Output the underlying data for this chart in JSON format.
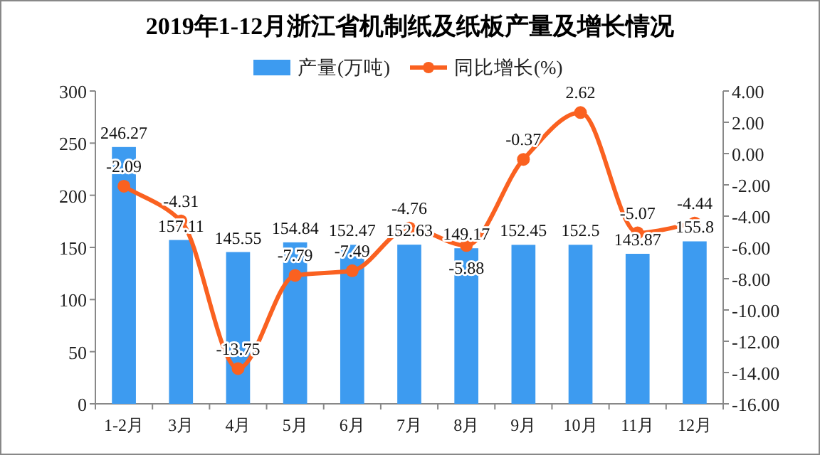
{
  "chart_data": {
    "type": "bar",
    "title": "2019年1-12月浙江省机制纸及纸板产量及增长情况",
    "categories": [
      "1-2月",
      "3月",
      "4月",
      "5月",
      "6月",
      "7月",
      "8月",
      "9月",
      "10月",
      "11月",
      "12月"
    ],
    "series": [
      {
        "name": "产量(万吨)",
        "color": "#3d9bf0",
        "values": [
          246.27,
          157.11,
          145.55,
          154.84,
          152.47,
          152.63,
          149.17,
          152.45,
          152.5,
          143.87,
          155.8
        ]
      },
      {
        "name": "同比增长(%)",
        "type": "line",
        "axis": "y2",
        "color": "#fa6120",
        "marker": "circle",
        "values": [
          -2.09,
          -4.31,
          -13.75,
          -7.79,
          -7.49,
          -4.76,
          -5.88,
          -0.37,
          2.62,
          -5.07,
          -4.44
        ]
      }
    ],
    "ylim": [
      0,
      300
    ],
    "yticks": [
      0,
      50,
      100,
      150,
      200,
      250,
      300
    ],
    "y2lim": [
      -16,
      4
    ],
    "y2ticks": [
      {
        "value": 4,
        "label": "4.00"
      },
      {
        "value": 2,
        "label": "2.00"
      },
      {
        "value": 0,
        "label": "0.00"
      },
      {
        "value": -2,
        "label": "-2.00"
      },
      {
        "value": -4,
        "label": "-4.00"
      },
      {
        "value": -6,
        "label": "-6.00"
      },
      {
        "value": -8,
        "label": "-8.00"
      },
      {
        "value": -10,
        "label": "-10.00"
      },
      {
        "value": -12,
        "label": "-12.00"
      },
      {
        "value": -14,
        "label": "-14.00"
      },
      {
        "value": -16,
        "label": "-16.00"
      }
    ],
    "data_labels": true,
    "legend": "top",
    "grid": false
  }
}
